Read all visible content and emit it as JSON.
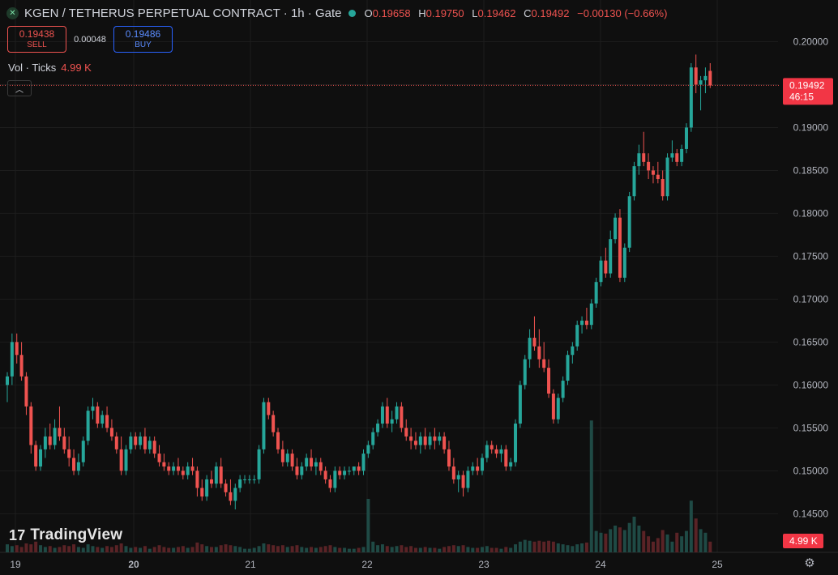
{
  "header": {
    "logo_icon": "x-logo-icon",
    "title": "KGEN / TETHERUS PERPETUAL CONTRACT · 1h · Gate",
    "status_dot_color": "#26a69a",
    "o_label": "O",
    "o_value": "0.19658",
    "h_label": "H",
    "h_value": "0.19750",
    "l_label": "L",
    "l_value": "0.19462",
    "c_label": "C",
    "c_value": "0.19492",
    "change": "−0.00130 (−0.66%)"
  },
  "trade": {
    "sell_price": "0.19438",
    "sell_label": "SELL",
    "spread": "0.00048",
    "buy_price": "0.19486",
    "buy_label": "BUY"
  },
  "volume_legend": {
    "label": "Vol · Ticks",
    "value": "4.99 K"
  },
  "collapse_icon": "chevron-up-icon",
  "branding": {
    "text": "TradingView",
    "icon": "tradingview-logo-icon"
  },
  "settings_icon": "gear-icon",
  "chart_data": {
    "type": "candlestick",
    "colors": {
      "up": "#26a69a",
      "down": "#ef5350",
      "vol_up": "#1f4a45",
      "vol_down": "#5a2326"
    },
    "price_axis": {
      "ticks": [
        "0.14500",
        "0.15000",
        "0.15500",
        "0.16000",
        "0.16500",
        "0.17000",
        "0.17500",
        "0.18000",
        "0.18500",
        "0.19000",
        "0.19500",
        "0.20000"
      ],
      "range": [
        0.1405,
        0.2025
      ],
      "last_price": "0.19492",
      "last_value": 0.19492,
      "countdown": "46:15",
      "volume_tag": "4.99 K"
    },
    "time_axis": {
      "labels": [
        "19",
        "20",
        "21",
        "22",
        "23",
        "24",
        "25"
      ],
      "bold": [
        "20"
      ]
    },
    "candles": [
      [
        0.16,
        0.1615,
        0.158,
        0.161,
        9
      ],
      [
        0.161,
        0.166,
        0.16,
        0.165,
        7
      ],
      [
        0.165,
        0.166,
        0.1625,
        0.1635,
        8
      ],
      [
        0.1635,
        0.165,
        0.1605,
        0.161,
        6
      ],
      [
        0.161,
        0.1615,
        0.1565,
        0.1575,
        10
      ],
      [
        0.1575,
        0.158,
        0.152,
        0.153,
        9
      ],
      [
        0.153,
        0.1535,
        0.15,
        0.1505,
        12
      ],
      [
        0.1505,
        0.153,
        0.15,
        0.1525,
        8
      ],
      [
        0.1525,
        0.155,
        0.1515,
        0.154,
        6
      ],
      [
        0.154,
        0.1555,
        0.1525,
        0.153,
        7
      ],
      [
        0.153,
        0.156,
        0.1525,
        0.155,
        5
      ],
      [
        0.155,
        0.1575,
        0.1535,
        0.154,
        6
      ],
      [
        0.154,
        0.155,
        0.152,
        0.1525,
        8
      ],
      [
        0.1525,
        0.154,
        0.1505,
        0.1515,
        7
      ],
      [
        0.1515,
        0.1525,
        0.1495,
        0.15,
        9
      ],
      [
        0.15,
        0.152,
        0.1495,
        0.151,
        6
      ],
      [
        0.151,
        0.154,
        0.1505,
        0.1535,
        5
      ],
      [
        0.1535,
        0.1575,
        0.153,
        0.157,
        9
      ],
      [
        0.157,
        0.1585,
        0.156,
        0.1575,
        7
      ],
      [
        0.1575,
        0.158,
        0.155,
        0.1555,
        6
      ],
      [
        0.1555,
        0.157,
        0.155,
        0.1565,
        5
      ],
      [
        0.1565,
        0.1575,
        0.1545,
        0.155,
        7
      ],
      [
        0.155,
        0.156,
        0.1535,
        0.154,
        6
      ],
      [
        0.154,
        0.1545,
        0.152,
        0.1525,
        8
      ],
      [
        0.1525,
        0.154,
        0.1495,
        0.15,
        10
      ],
      [
        0.15,
        0.153,
        0.1495,
        0.1525,
        7
      ],
      [
        0.1525,
        0.1545,
        0.152,
        0.154,
        5
      ],
      [
        0.154,
        0.1545,
        0.1525,
        0.153,
        6
      ],
      [
        0.153,
        0.1545,
        0.1525,
        0.154,
        5
      ],
      [
        0.154,
        0.155,
        0.152,
        0.1525,
        7
      ],
      [
        0.1525,
        0.154,
        0.152,
        0.1535,
        4
      ],
      [
        0.1535,
        0.154,
        0.1515,
        0.152,
        6
      ],
      [
        0.152,
        0.153,
        0.1505,
        0.151,
        8
      ],
      [
        0.151,
        0.152,
        0.15,
        0.1505,
        6
      ],
      [
        0.1505,
        0.151,
        0.1495,
        0.15,
        5
      ],
      [
        0.15,
        0.151,
        0.1495,
        0.1505,
        5
      ],
      [
        0.1505,
        0.1515,
        0.1495,
        0.15,
        6
      ],
      [
        0.15,
        0.1505,
        0.149,
        0.1495,
        7
      ],
      [
        0.1495,
        0.151,
        0.149,
        0.1505,
        5
      ],
      [
        0.1505,
        0.1515,
        0.1495,
        0.15,
        6
      ],
      [
        0.15,
        0.1505,
        0.147,
        0.148,
        11
      ],
      [
        0.148,
        0.149,
        0.1465,
        0.147,
        9
      ],
      [
        0.147,
        0.1495,
        0.1465,
        0.149,
        7
      ],
      [
        0.149,
        0.15,
        0.148,
        0.1485,
        6
      ],
      [
        0.1485,
        0.151,
        0.148,
        0.1505,
        6
      ],
      [
        0.1505,
        0.1515,
        0.148,
        0.1485,
        8
      ],
      [
        0.1485,
        0.149,
        0.147,
        0.1475,
        9
      ],
      [
        0.1475,
        0.149,
        0.146,
        0.1465,
        8
      ],
      [
        0.1465,
        0.1485,
        0.1455,
        0.148,
        7
      ],
      [
        0.148,
        0.1495,
        0.1475,
        0.149,
        6
      ],
      [
        0.149,
        0.1495,
        0.1485,
        0.149,
        4
      ],
      [
        0.149,
        0.1495,
        0.1485,
        0.149,
        4
      ],
      [
        0.149,
        0.1495,
        0.1485,
        0.149,
        5
      ],
      [
        0.149,
        0.153,
        0.1485,
        0.1525,
        7
      ],
      [
        0.1525,
        0.1585,
        0.152,
        0.158,
        10
      ],
      [
        0.158,
        0.1585,
        0.156,
        0.1565,
        9
      ],
      [
        0.1565,
        0.157,
        0.154,
        0.1545,
        8
      ],
      [
        0.1545,
        0.155,
        0.152,
        0.1525,
        7
      ],
      [
        0.1525,
        0.1535,
        0.1505,
        0.151,
        8
      ],
      [
        0.151,
        0.1525,
        0.1505,
        0.152,
        6
      ],
      [
        0.152,
        0.1525,
        0.15,
        0.1505,
        7
      ],
      [
        0.1505,
        0.1515,
        0.149,
        0.1495,
        8
      ],
      [
        0.1495,
        0.151,
        0.149,
        0.1505,
        6
      ],
      [
        0.1505,
        0.152,
        0.15,
        0.1515,
        5
      ],
      [
        0.1515,
        0.1525,
        0.15,
        0.1505,
        6
      ],
      [
        0.1505,
        0.1515,
        0.1495,
        0.151,
        5
      ],
      [
        0.151,
        0.1515,
        0.1495,
        0.15,
        6
      ],
      [
        0.15,
        0.1505,
        0.1485,
        0.149,
        7
      ],
      [
        0.149,
        0.1495,
        0.1475,
        0.148,
        8
      ],
      [
        0.148,
        0.1505,
        0.1475,
        0.15,
        6
      ],
      [
        0.15,
        0.1505,
        0.149,
        0.1495,
        5
      ],
      [
        0.1495,
        0.1505,
        0.149,
        0.15,
        5
      ],
      [
        0.15,
        0.1505,
        0.1495,
        0.15,
        4
      ],
      [
        0.15,
        0.1505,
        0.1495,
        0.1505,
        4
      ],
      [
        0.1505,
        0.151,
        0.1495,
        0.15,
        5
      ],
      [
        0.15,
        0.1525,
        0.1495,
        0.152,
        6
      ],
      [
        0.152,
        0.1535,
        0.1515,
        0.153,
        60
      ],
      [
        0.153,
        0.155,
        0.1525,
        0.1545,
        12
      ],
      [
        0.1545,
        0.156,
        0.154,
        0.1555,
        8
      ],
      [
        0.1555,
        0.158,
        0.155,
        0.1575,
        9
      ],
      [
        0.1575,
        0.1585,
        0.155,
        0.1555,
        7
      ],
      [
        0.1555,
        0.157,
        0.1545,
        0.156,
        6
      ],
      [
        0.156,
        0.158,
        0.1555,
        0.1575,
        7
      ],
      [
        0.1575,
        0.158,
        0.1545,
        0.155,
        8
      ],
      [
        0.155,
        0.156,
        0.1535,
        0.154,
        6
      ],
      [
        0.154,
        0.155,
        0.1525,
        0.1535,
        7
      ],
      [
        0.1535,
        0.1545,
        0.1525,
        0.153,
        5
      ],
      [
        0.153,
        0.1545,
        0.152,
        0.154,
        5
      ],
      [
        0.154,
        0.155,
        0.1525,
        0.153,
        6
      ],
      [
        0.153,
        0.1545,
        0.1525,
        0.154,
        5
      ],
      [
        0.154,
        0.155,
        0.1525,
        0.1535,
        5
      ],
      [
        0.1535,
        0.1545,
        0.153,
        0.154,
        4
      ],
      [
        0.154,
        0.1545,
        0.152,
        0.1525,
        6
      ],
      [
        0.1525,
        0.1535,
        0.15,
        0.1505,
        7
      ],
      [
        0.1505,
        0.1515,
        0.1485,
        0.149,
        8
      ],
      [
        0.149,
        0.15,
        0.1475,
        0.1495,
        7
      ],
      [
        0.1495,
        0.15,
        0.147,
        0.148,
        8
      ],
      [
        0.148,
        0.1505,
        0.1475,
        0.15,
        6
      ],
      [
        0.15,
        0.151,
        0.1495,
        0.1505,
        5
      ],
      [
        0.1505,
        0.1515,
        0.1495,
        0.15,
        5
      ],
      [
        0.15,
        0.152,
        0.1495,
        0.1515,
        6
      ],
      [
        0.1515,
        0.1535,
        0.151,
        0.153,
        7
      ],
      [
        0.153,
        0.1535,
        0.152,
        0.1525,
        5
      ],
      [
        0.1525,
        0.153,
        0.1515,
        0.152,
        5
      ],
      [
        0.152,
        0.153,
        0.151,
        0.1525,
        4
      ],
      [
        0.1525,
        0.153,
        0.15,
        0.1505,
        6
      ],
      [
        0.1505,
        0.1515,
        0.15,
        0.151,
        5
      ],
      [
        0.151,
        0.156,
        0.1505,
        0.1555,
        9
      ],
      [
        0.1555,
        0.1605,
        0.155,
        0.16,
        12
      ],
      [
        0.16,
        0.1635,
        0.1595,
        0.163,
        14
      ],
      [
        0.163,
        0.1665,
        0.162,
        0.1655,
        13
      ],
      [
        0.1655,
        0.168,
        0.164,
        0.1645,
        12
      ],
      [
        0.1645,
        0.1665,
        0.162,
        0.163,
        13
      ],
      [
        0.163,
        0.165,
        0.1615,
        0.162,
        12
      ],
      [
        0.162,
        0.163,
        0.1585,
        0.159,
        13
      ],
      [
        0.159,
        0.1595,
        0.1555,
        0.156,
        12
      ],
      [
        0.156,
        0.159,
        0.1555,
        0.1585,
        10
      ],
      [
        0.1585,
        0.161,
        0.158,
        0.1605,
        9
      ],
      [
        0.1605,
        0.164,
        0.16,
        0.1635,
        8
      ],
      [
        0.1635,
        0.165,
        0.1625,
        0.1645,
        7
      ],
      [
        0.1645,
        0.1675,
        0.164,
        0.167,
        9
      ],
      [
        0.167,
        0.168,
        0.166,
        0.1675,
        10
      ],
      [
        0.1675,
        0.169,
        0.1665,
        0.167,
        11
      ],
      [
        0.167,
        0.17,
        0.1665,
        0.1695,
        148
      ],
      [
        0.1695,
        0.1725,
        0.169,
        0.172,
        24
      ],
      [
        0.172,
        0.175,
        0.1715,
        0.1745,
        22
      ],
      [
        0.1745,
        0.176,
        0.1725,
        0.173,
        21
      ],
      [
        0.173,
        0.178,
        0.1725,
        0.177,
        26
      ],
      [
        0.177,
        0.18,
        0.1765,
        0.1795,
        30
      ],
      [
        0.1795,
        0.1805,
        0.172,
        0.1725,
        28
      ],
      [
        0.1725,
        0.1765,
        0.172,
        0.176,
        25
      ],
      [
        0.176,
        0.1825,
        0.1755,
        0.182,
        33
      ],
      [
        0.182,
        0.186,
        0.1815,
        0.1855,
        40
      ],
      [
        0.1855,
        0.188,
        0.1845,
        0.187,
        30
      ],
      [
        0.187,
        0.1895,
        0.1855,
        0.186,
        24
      ],
      [
        0.186,
        0.187,
        0.184,
        0.185,
        18
      ],
      [
        0.185,
        0.1855,
        0.1835,
        0.1845,
        12
      ],
      [
        0.1845,
        0.186,
        0.1835,
        0.184,
        16
      ],
      [
        0.184,
        0.185,
        0.1815,
        0.182,
        25
      ],
      [
        0.182,
        0.187,
        0.1815,
        0.1865,
        20
      ],
      [
        0.1865,
        0.1885,
        0.186,
        0.187,
        12
      ],
      [
        0.187,
        0.1875,
        0.1855,
        0.186,
        22
      ],
      [
        0.186,
        0.188,
        0.1855,
        0.1875,
        18
      ],
      [
        0.1875,
        0.1905,
        0.187,
        0.19,
        24
      ],
      [
        0.19,
        0.1975,
        0.1895,
        0.197,
        58
      ],
      [
        0.197,
        0.1985,
        0.194,
        0.195,
        38
      ],
      [
        0.195,
        0.196,
        0.192,
        0.1955,
        26
      ],
      [
        0.1955,
        0.197,
        0.194,
        0.196,
        22
      ],
      [
        0.1966,
        0.1975,
        0.1946,
        0.1949,
        12
      ]
    ]
  }
}
